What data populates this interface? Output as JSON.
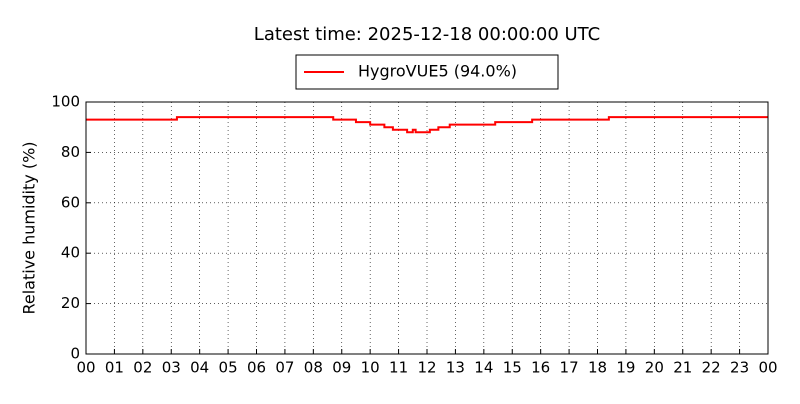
{
  "chart_data": {
    "type": "line",
    "title": "Latest time: 2025-12-18 00:00:00 UTC",
    "y_label": "Relative humidity (%)",
    "drawstyle": "steps-post",
    "x": [
      0,
      3.2,
      8.7,
      9.5,
      10.0,
      10.5,
      10.8,
      11.3,
      11.5,
      11.6,
      12.1,
      12.4,
      12.8,
      14.4,
      15.7,
      18.4,
      24
    ],
    "series": [
      {
        "name": "HygroVUE5 (94.0%)",
        "color": "#ff0000",
        "values": [
          93,
          94,
          93,
          92,
          91,
          90,
          89,
          88,
          89,
          88,
          89,
          90,
          91,
          92,
          93,
          94,
          94
        ]
      }
    ],
    "xlim": [
      0,
      24
    ],
    "xticks": [
      {
        "value": 0,
        "label": "00"
      },
      {
        "value": 1,
        "label": "01"
      },
      {
        "value": 2,
        "label": "02"
      },
      {
        "value": 3,
        "label": "03"
      },
      {
        "value": 4,
        "label": "04"
      },
      {
        "value": 5,
        "label": "05"
      },
      {
        "value": 6,
        "label": "06"
      },
      {
        "value": 7,
        "label": "07"
      },
      {
        "value": 8,
        "label": "08"
      },
      {
        "value": 9,
        "label": "09"
      },
      {
        "value": 10,
        "label": "10"
      },
      {
        "value": 11,
        "label": "11"
      },
      {
        "value": 12,
        "label": "12"
      },
      {
        "value": 13,
        "label": "13"
      },
      {
        "value": 14,
        "label": "14"
      },
      {
        "value": 15,
        "label": "15"
      },
      {
        "value": 16,
        "label": "16"
      },
      {
        "value": 17,
        "label": "17"
      },
      {
        "value": 18,
        "label": "18"
      },
      {
        "value": 19,
        "label": "19"
      },
      {
        "value": 20,
        "label": "20"
      },
      {
        "value": 21,
        "label": "21"
      },
      {
        "value": 22,
        "label": "22"
      },
      {
        "value": 23,
        "label": "23"
      },
      {
        "value": 24,
        "label": "00"
      }
    ],
    "ylim": [
      0,
      100
    ],
    "yticks": [
      0,
      20,
      40,
      60,
      80,
      100
    ],
    "grid": true,
    "legend": "top"
  }
}
